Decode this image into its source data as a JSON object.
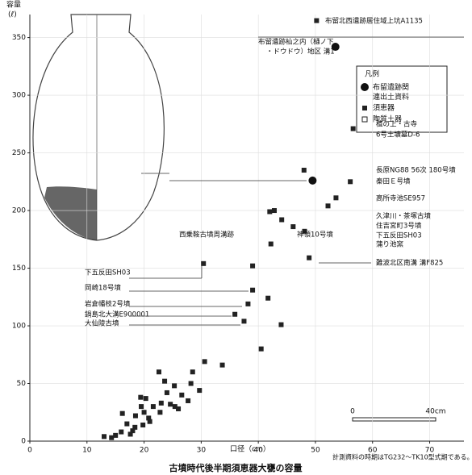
{
  "chart_data": {
    "type": "scatter",
    "title": "古墳時代後半期須恵器大甕の容量",
    "x_label": "口径（cm）",
    "y_label": [
      "容量",
      "(ℓ)"
    ],
    "note": "計測資料の時期はTG232～TK10型式期である。",
    "legend_title": "凡例",
    "xlim": [
      0,
      76
    ],
    "ylim": [
      0,
      370
    ],
    "xticks": [
      0,
      10,
      20,
      30,
      40,
      50,
      60,
      70
    ],
    "yticks": [
      0,
      50,
      100,
      150,
      200,
      250,
      300,
      350
    ],
    "grid": true,
    "series": [
      {
        "name": "布留遺跡関連出土資料",
        "color": "#111111",
        "marker": "circle",
        "x": [
          53.5,
          49.5
        ],
        "y": [
          342,
          226
        ]
      },
      {
        "name": "須恵器",
        "color": "#222222",
        "marker": "square",
        "x": [
          50.2,
          56.6,
          48,
          56.1,
          53.6,
          52.2,
          42,
          42.8,
          44.1,
          46.1,
          48.1,
          42.2,
          48.9,
          39,
          30.4,
          39,
          41.7,
          38.2,
          35.9,
          37.5,
          44,
          40.5,
          33.7,
          30.6,
          28.5,
          28.2,
          22.6,
          29.7,
          23.6,
          25.3,
          26.6,
          24,
          27.7,
          24.6,
          20.3,
          19.4,
          21.6,
          25.4,
          26,
          22.8,
          20,
          18.5,
          20.8,
          16.2,
          17,
          18.4,
          19.8,
          16,
          15,
          13,
          14.3,
          17.6,
          18,
          21,
          19.5,
          23
        ],
        "y": [
          364.7,
          271,
          235,
          225,
          211,
          204,
          199,
          200,
          192,
          186,
          182,
          171,
          159,
          152,
          154,
          131,
          124,
          119,
          110,
          104,
          101,
          80,
          66,
          69,
          60,
          50,
          60,
          44,
          52,
          48,
          40,
          42,
          35,
          32,
          37,
          38,
          30,
          30,
          28,
          25,
          25,
          22,
          20,
          24,
          15,
          12,
          14,
          8,
          5,
          4,
          3,
          6,
          9,
          17,
          30,
          33
        ]
      },
      {
        "name": "陶質土器",
        "color": "#ffffff",
        "marker": "open-square",
        "x": [],
        "y": []
      }
    ],
    "annotations": [
      "布留北西遺跡居住域上坑A1135",
      "布留遺跡杣之内（樋ノ下",
      "・ドウドウ）地区 溝1",
      "植の上・古寺",
      "6号土壙墓D-6",
      "長原NG88 56次 180号墳",
      "秦田Ｅ号墳",
      "高所寺池SE957",
      "久津川・茶塚古墳",
      "住吉宮町3号墳",
      "下五反田SH03",
      "神領10号墳",
      "蒲り池窯",
      "難波北区南溝 溝F825",
      "西乗鞍古墳周溝跡",
      "下五反田SH03",
      "岡崎18号墳",
      "岩倉幡枝2号墳",
      "鍋島北大溝E900001",
      "大仙陵古墳"
    ],
    "scale_bar": [
      "0",
      "40cm"
    ]
  }
}
